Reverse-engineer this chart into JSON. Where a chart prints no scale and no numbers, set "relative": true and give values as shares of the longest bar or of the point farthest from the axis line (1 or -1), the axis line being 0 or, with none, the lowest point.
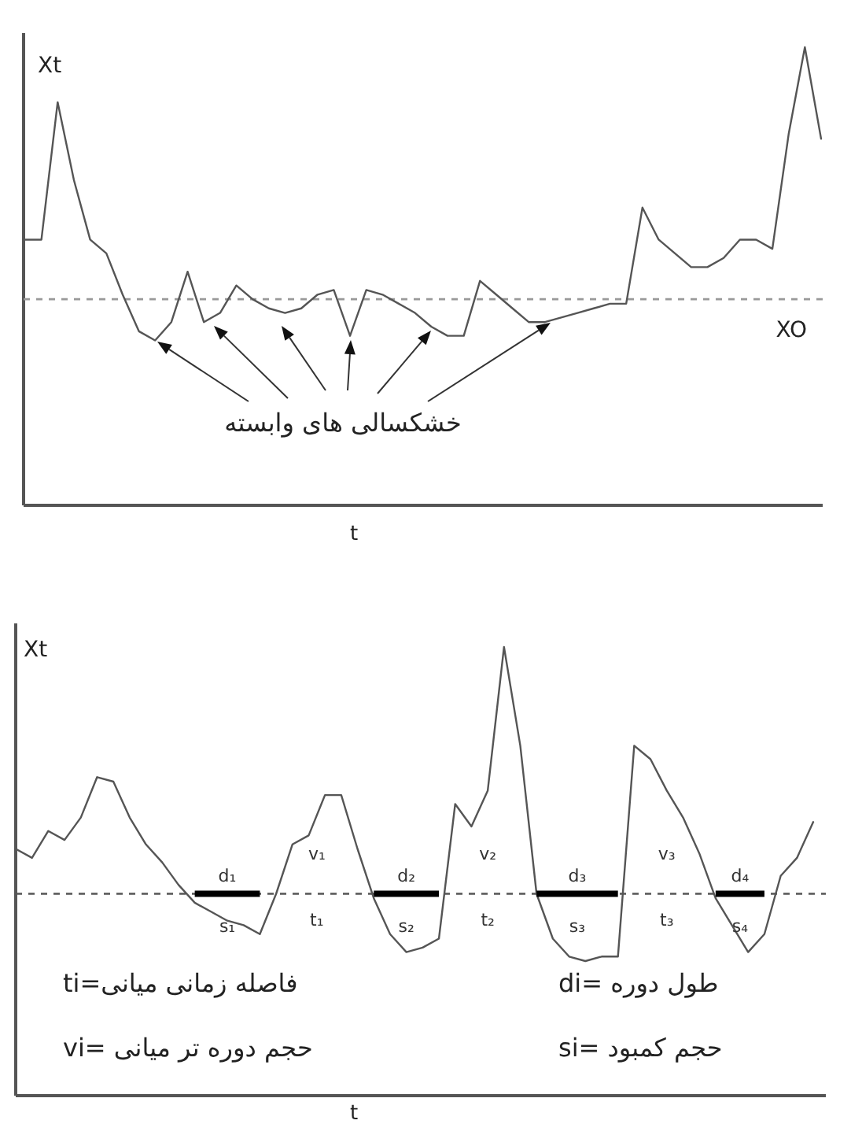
{
  "chart_data": [
    {
      "type": "line",
      "relative": true,
      "ylabel": "Xt",
      "xlabel": "t",
      "categories": [
        null,
        null,
        null,
        null,
        null,
        null,
        null,
        null,
        null,
        null,
        null,
        null,
        null,
        null,
        null,
        null,
        null,
        null,
        null,
        null,
        null,
        null,
        null,
        null,
        null,
        null,
        null,
        null,
        null,
        null,
        null,
        null,
        null,
        null,
        null,
        null,
        null,
        null,
        null,
        null,
        null,
        null,
        null,
        null,
        null,
        null,
        null,
        null,
        null,
        null
      ],
      "series": [
        {
          "color": "#555555",
          "values": [
            0.58,
            0.58,
            0.88,
            0.71,
            0.58,
            0.55,
            0.46,
            0.38,
            0.36,
            0.4,
            0.51,
            0.4,
            0.42,
            0.48,
            0.45,
            0.43,
            0.42,
            0.43,
            0.46,
            0.47,
            0.37,
            0.47,
            0.46,
            0.44,
            0.42,
            0.39,
            0.37,
            0.37,
            0.49,
            0.46,
            0.43,
            0.4,
            0.4,
            0.41,
            0.42,
            0.43,
            0.44,
            0.44,
            0.65,
            0.58,
            0.55,
            0.52,
            0.52,
            0.54,
            0.58,
            0.58,
            0.56,
            0.81,
            1.0,
            0.8
          ]
        }
      ],
      "ref_lines": [
        {
          "axis": "y",
          "value": 0.45,
          "label": "XO",
          "color": "#999999",
          "line_style": "dashed"
        }
      ],
      "annotations": [
        "خشکسالی های وابسته"
      ]
    },
    {
      "type": "line",
      "relative": true,
      "ylabel": "Xt",
      "xlabel": "t",
      "categories": [
        null,
        null,
        null,
        null,
        null,
        null,
        null,
        null,
        null,
        null,
        null,
        null,
        null,
        null,
        null,
        null,
        null,
        null,
        null,
        null,
        null,
        null,
        null,
        null,
        null,
        null,
        null,
        null,
        null,
        null,
        null,
        null,
        null,
        null,
        null,
        null,
        null,
        null,
        null,
        null,
        null,
        null,
        null,
        null,
        null,
        null,
        null,
        null,
        null,
        null
      ],
      "series": [
        {
          "color": "#555555",
          "values": [
            0.55,
            0.53,
            0.59,
            0.57,
            0.62,
            0.71,
            0.7,
            0.62,
            0.56,
            0.52,
            0.47,
            0.43,
            0.41,
            0.39,
            0.38,
            0.36,
            0.45,
            0.56,
            0.58,
            0.67,
            0.67,
            0.55,
            0.44,
            0.36,
            0.32,
            0.33,
            0.35,
            0.65,
            0.6,
            0.68,
            1.0,
            0.78,
            0.45,
            0.35,
            0.31,
            0.3,
            0.31,
            0.31,
            0.78,
            0.75,
            0.68,
            0.62,
            0.54,
            0.44,
            0.38,
            0.32,
            0.36,
            0.49,
            0.53,
            0.61
          ]
        },
        {
          "color": "#000000",
          "values": [
            null,
            null,
            null,
            null,
            null,
            null,
            null,
            null,
            null,
            null,
            null,
            0.45,
            0.45,
            0.45,
            0.45,
            0.45,
            null,
            null,
            null,
            null,
            null,
            null,
            null,
            null,
            null,
            null,
            null,
            null,
            null,
            null,
            null,
            null,
            null,
            null,
            null,
            null,
            null,
            null,
            null,
            null,
            null,
            null,
            null,
            null,
            null,
            null,
            null,
            null,
            null,
            null
          ]
        },
        {
          "color": "#000000",
          "values": [
            null,
            null,
            null,
            null,
            null,
            null,
            null,
            null,
            null,
            null,
            null,
            null,
            null,
            null,
            null,
            null,
            null,
            null,
            null,
            null,
            null,
            null,
            0.45,
            0.45,
            0.45,
            0.45,
            0.45,
            null,
            null,
            null,
            null,
            null,
            null,
            null,
            null,
            null,
            null,
            null,
            null,
            null,
            null,
            null,
            null,
            null,
            null,
            null,
            null,
            null,
            null,
            null
          ]
        },
        {
          "color": "#000000",
          "values": [
            null,
            null,
            null,
            null,
            null,
            null,
            null,
            null,
            null,
            null,
            null,
            null,
            null,
            null,
            null,
            null,
            null,
            null,
            null,
            null,
            null,
            null,
            null,
            null,
            null,
            null,
            null,
            null,
            null,
            null,
            null,
            null,
            0.45,
            0.45,
            0.45,
            0.45,
            0.45,
            0.45,
            null,
            null,
            null,
            null,
            null,
            null,
            null,
            null,
            null,
            null,
            null,
            null
          ]
        },
        {
          "color": "#000000",
          "values": [
            null,
            null,
            null,
            null,
            null,
            null,
            null,
            null,
            null,
            null,
            null,
            null,
            null,
            null,
            null,
            null,
            null,
            null,
            null,
            null,
            null,
            null,
            null,
            null,
            null,
            null,
            null,
            null,
            null,
            null,
            null,
            null,
            null,
            null,
            null,
            null,
            null,
            null,
            null,
            null,
            null,
            null,
            null,
            0.45,
            0.45,
            0.45,
            0.45,
            null,
            null,
            null
          ]
        }
      ],
      "ref_lines": [
        {
          "axis": "y",
          "value": 0.45,
          "color": "#555555",
          "line_style": "dashed"
        }
      ],
      "annotations": [
        "d₁",
        "d₂",
        "d₃",
        "d₄",
        "s₁",
        "s₂",
        "s₃",
        "s₄",
        "v₁",
        "v₂",
        "v₃",
        "t₁",
        "t₂",
        "t₃",
        "ti=فاصله زمانی میانی",
        "di= طول دوره",
        "vi= حجم دوره تر میانی",
        "si= حجم کمبود"
      ]
    }
  ]
}
